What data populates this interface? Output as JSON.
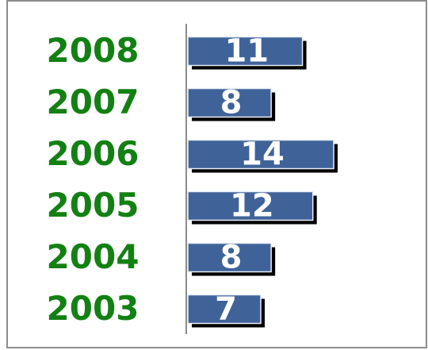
{
  "chart_data": {
    "type": "bar",
    "orientation": "horizontal",
    "categories": [
      "2008",
      "2007",
      "2006",
      "2005",
      "2004",
      "2003"
    ],
    "values": [
      11,
      8,
      14,
      12,
      8,
      7
    ],
    "color": "#3f6399",
    "label_color": "#138013"
  }
}
